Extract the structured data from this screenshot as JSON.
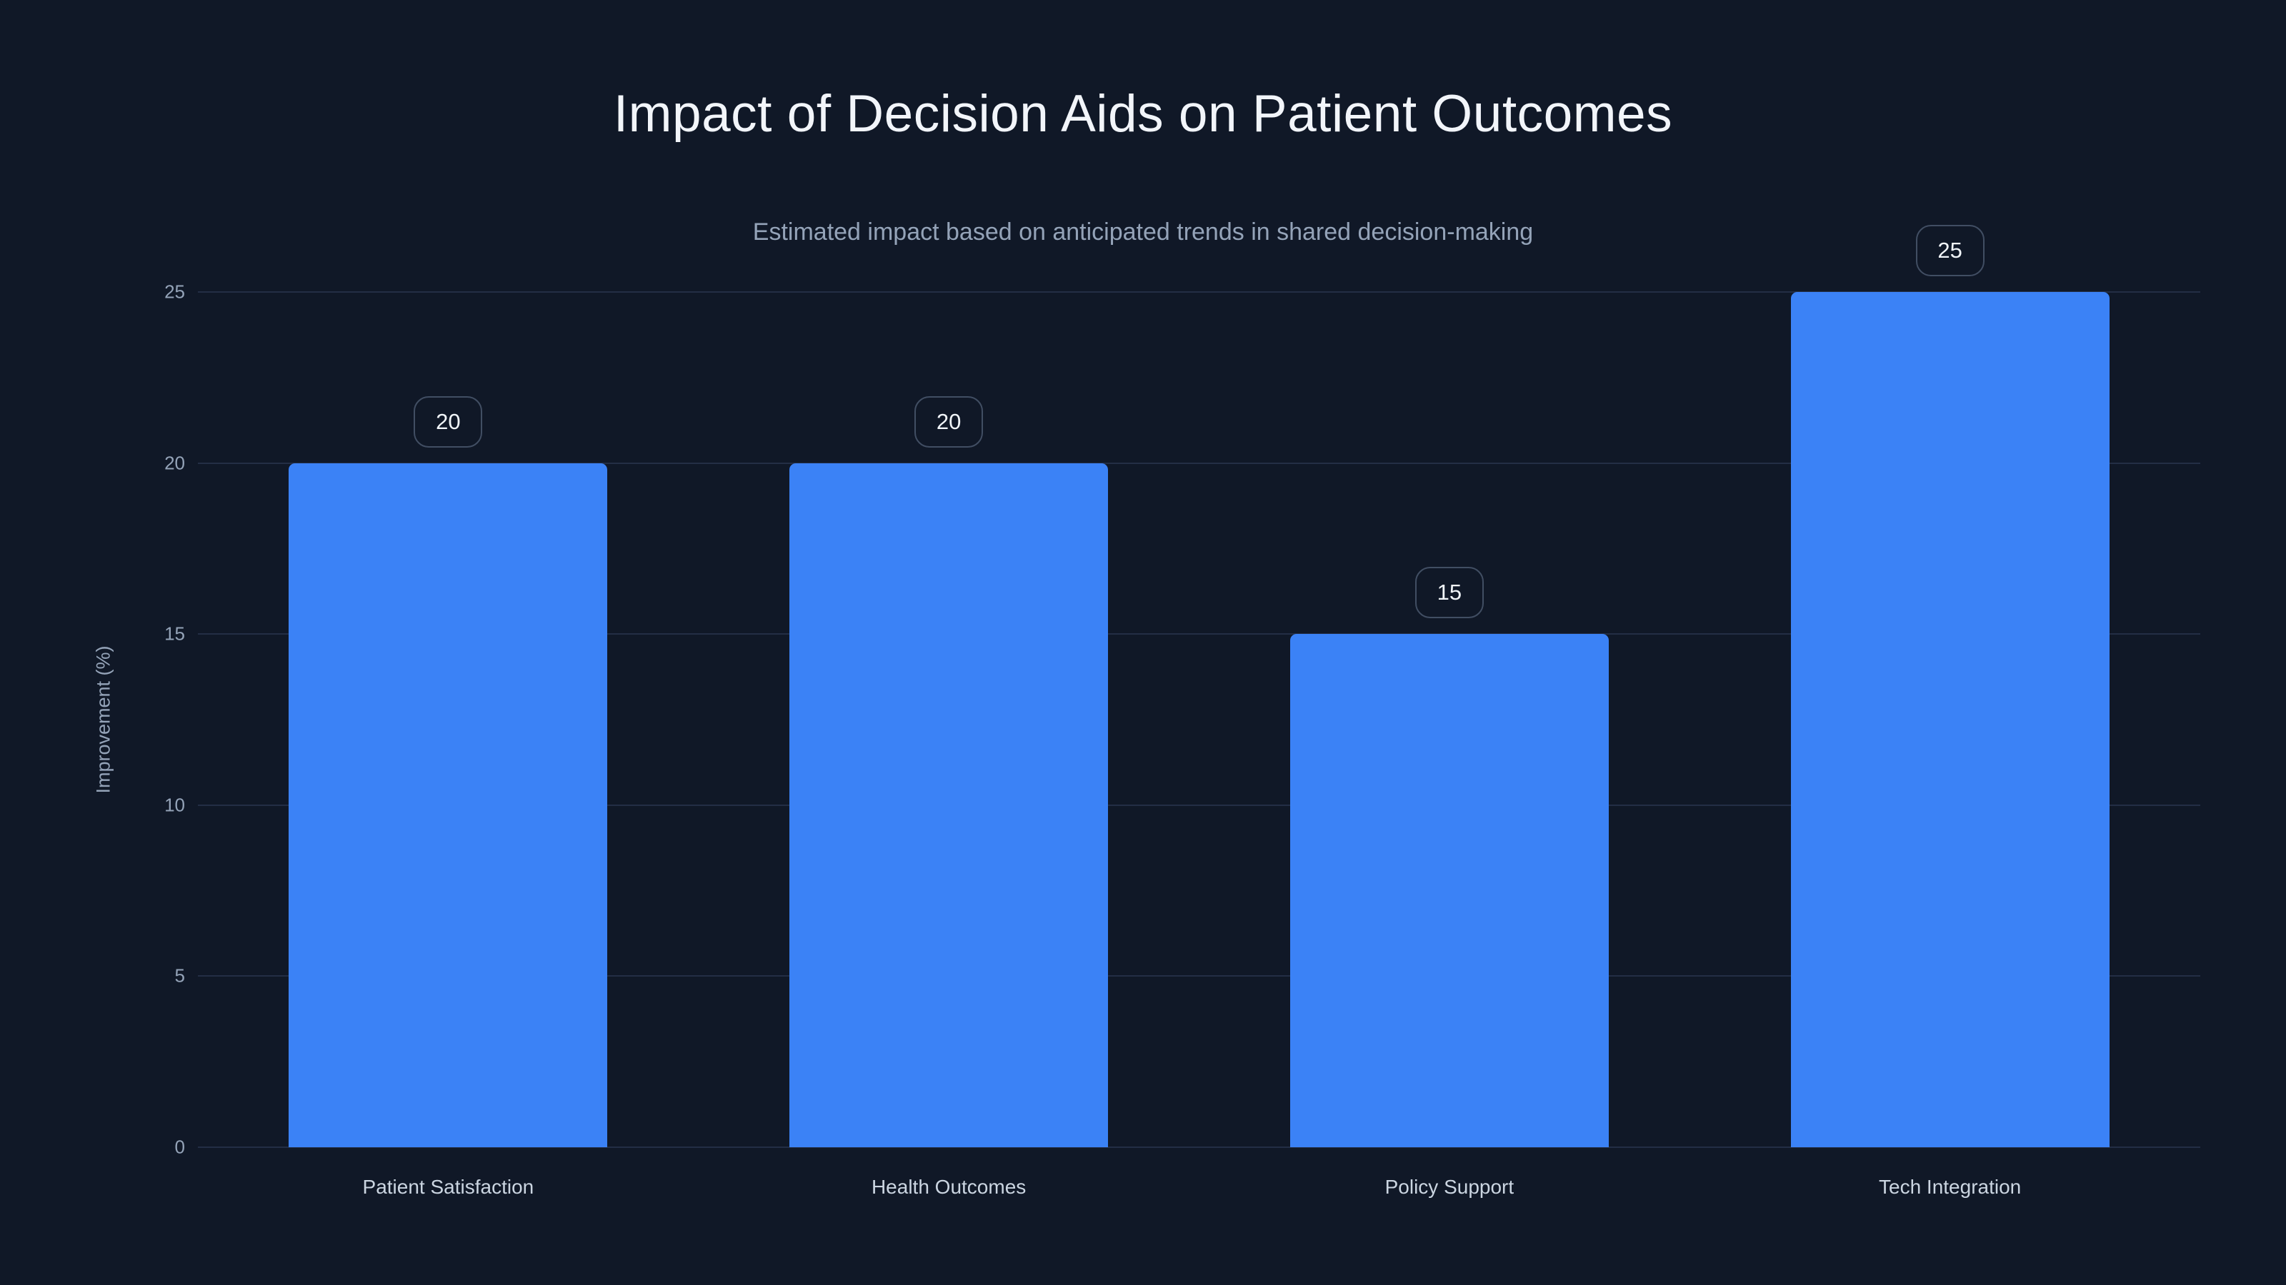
{
  "page": {
    "background_color": "#101827"
  },
  "chart_data": {
    "type": "bar",
    "title": "Impact of Decision Aids on Patient Outcomes",
    "subtitle": "Estimated impact based on anticipated trends in shared decision-making",
    "categories": [
      "Patient Satisfaction",
      "Health Outcomes",
      "Policy Support",
      "Tech Integration"
    ],
    "values": [
      20,
      20,
      15,
      25
    ],
    "value_labels": [
      "20",
      "20",
      "15",
      "25"
    ],
    "xlabel": "",
    "ylabel": "Improvement (%)",
    "ylim": [
      0,
      25
    ],
    "yticks": [
      0,
      5,
      10,
      15,
      20,
      25
    ],
    "grid": "horizontal-only",
    "legend": "none",
    "colors": {
      "bar": "#3b82f6",
      "background": "#101827",
      "gridline": "#232e45",
      "title_text": "#f2f5fa",
      "subtitle_text": "#94a3b8",
      "tick_text": "#94a3b8",
      "category_text": "#cbd5e1",
      "badge_text": "#f1f5f9",
      "badge_border": "#414e63"
    }
  }
}
